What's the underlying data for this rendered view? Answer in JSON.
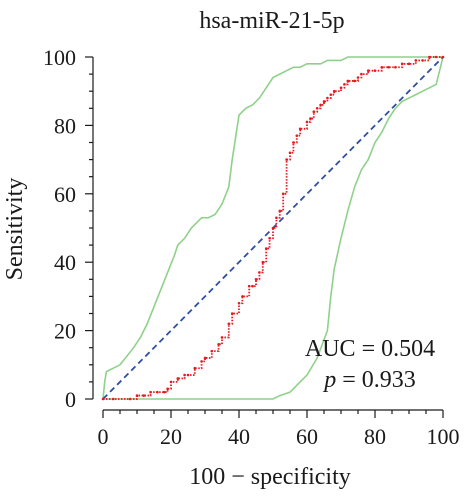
{
  "chart_data": {
    "type": "line",
    "title": "hsa-miR-21-5p",
    "xlabel": "100 − specificity",
    "ylabel": "Sensitivity",
    "xlim": [
      0,
      100
    ],
    "ylim": [
      0,
      100
    ],
    "xticks": [
      "0",
      "20",
      "40",
      "60",
      "80",
      "100"
    ],
    "yticks": [
      "0",
      "20",
      "40",
      "60",
      "80",
      "100"
    ],
    "grid": false,
    "legend": "none",
    "annotations": {
      "auc_text": "AUC = 0.504",
      "p_label": "p",
      "p_value": " = 0.933"
    },
    "series": [
      {
        "role": "roc-curve",
        "color": "#e8191f",
        "style": "step-dotted",
        "x": [
          0,
          3,
          8,
          10,
          12,
          14,
          16,
          18,
          19,
          20,
          22,
          24,
          25,
          27,
          29,
          30,
          32,
          34,
          35,
          37,
          38,
          40,
          41,
          43,
          44,
          45,
          46,
          47,
          48,
          49,
          50,
          51,
          52,
          53,
          54,
          55,
          56,
          57,
          58,
          60,
          61,
          62,
          63,
          64,
          65,
          66,
          67,
          68,
          70,
          71,
          72,
          74,
          75,
          76,
          78,
          80,
          82,
          84,
          86,
          88,
          90,
          92,
          94,
          96,
          98,
          100
        ],
        "y": [
          0,
          0,
          0,
          1,
          1,
          2,
          2,
          2,
          3,
          5,
          6,
          7,
          7,
          9,
          11,
          12,
          14,
          16,
          18,
          22,
          25,
          28,
          30,
          33,
          33,
          35,
          37,
          40,
          44,
          47,
          50,
          53,
          55,
          60,
          70,
          72,
          75,
          77,
          79,
          81,
          82,
          84,
          85,
          86,
          87,
          88,
          89,
          90,
          91,
          92,
          93,
          93,
          94,
          95,
          96,
          96,
          97,
          97,
          97,
          98,
          98,
          99,
          99,
          100,
          100,
          100
        ]
      },
      {
        "role": "confidence-upper",
        "color": "#8fd18a",
        "style": "solid",
        "x": [
          0,
          0.5,
          1,
          5,
          9,
          11,
          13,
          15,
          17,
          19,
          21,
          22,
          24,
          26,
          28,
          29,
          31,
          33,
          35,
          37,
          38,
          40,
          42,
          44,
          46,
          48,
          50,
          52,
          54,
          56,
          58,
          60,
          62,
          64,
          66,
          68,
          70,
          72,
          76,
          80,
          85,
          90,
          95,
          100
        ],
        "y": [
          0,
          5,
          8,
          10,
          15,
          18,
          22,
          27,
          32,
          37,
          42,
          45,
          47,
          50,
          52,
          53,
          53,
          54,
          57,
          62,
          70,
          83,
          85,
          86,
          88,
          91,
          94,
          95,
          96,
          97,
          97,
          98,
          98,
          98,
          99,
          99,
          99,
          100,
          100,
          100,
          100,
          100,
          100,
          100
        ]
      },
      {
        "role": "confidence-lower",
        "color": "#8fd18a",
        "style": "solid",
        "x": [
          0,
          10,
          20,
          30,
          40,
          45,
          50,
          52,
          55,
          57,
          60,
          63,
          66,
          67,
          68,
          70,
          72,
          74,
          76,
          78,
          80,
          82,
          84,
          86,
          88,
          90,
          92,
          94,
          96,
          98,
          99,
          100
        ],
        "y": [
          0,
          0,
          0,
          0,
          0,
          0,
          0,
          1,
          2,
          4,
          7,
          12,
          20,
          30,
          38,
          47,
          55,
          62,
          67,
          70,
          75,
          78,
          82,
          85,
          87,
          88,
          89,
          90,
          91,
          92,
          96,
          100
        ]
      },
      {
        "role": "reference-diagonal",
        "color": "#2f4fa0",
        "style": "dashed",
        "x": [
          0,
          100
        ],
        "y": [
          0,
          100
        ]
      }
    ]
  }
}
